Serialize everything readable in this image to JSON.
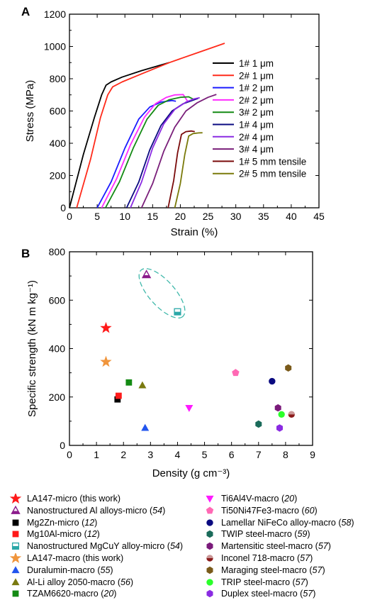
{
  "chart_data": [
    {
      "panel": "A",
      "type": "line",
      "xlabel": "Strain (%)",
      "ylabel": "Stress (MPa)",
      "xlim": [
        0,
        45
      ],
      "ylim": [
        0,
        1200
      ],
      "xticks": [
        0,
        5,
        10,
        15,
        20,
        25,
        30,
        35,
        40,
        45
      ],
      "yticks": [
        0,
        200,
        400,
        600,
        800,
        1000,
        1200
      ],
      "legend_position": "right",
      "series": [
        {
          "name": "1# 1 μm",
          "color": "#000000",
          "x": [
            0,
            2.5,
            4.5,
            5.8,
            6.6,
            7.5,
            9.5,
            13,
            18
          ],
          "y": [
            0,
            330,
            560,
            700,
            760,
            780,
            810,
            850,
            900
          ]
        },
        {
          "name": "2# 1 μm",
          "color": "#ff2a1a",
          "x": [
            1.3,
            3.8,
            5.6,
            6.9,
            7.8,
            9.5,
            13,
            18,
            23,
            28
          ],
          "y": [
            0,
            300,
            560,
            700,
            750,
            780,
            830,
            900,
            960,
            1020
          ]
        },
        {
          "name": "1# 2 μm",
          "color": "#1b1bff",
          "x": [
            5.0,
            7.5,
            10,
            12.5,
            14.5,
            16.5,
            18.5,
            19.2
          ],
          "y": [
            0,
            160,
            370,
            550,
            625,
            655,
            665,
            660
          ]
        },
        {
          "name": "2# 2 μm",
          "color": "#ff2aff",
          "x": [
            5.8,
            8.5,
            11,
            13.5,
            15.5,
            17.5,
            19,
            20.5,
            21.3
          ],
          "y": [
            0,
            180,
            390,
            560,
            645,
            685,
            700,
            702,
            660
          ]
        },
        {
          "name": "3# 2 μm",
          "color": "#138a13",
          "x": [
            6.5,
            9,
            11.5,
            14,
            16,
            18,
            20,
            21.5,
            22.5
          ],
          "y": [
            0,
            160,
            370,
            550,
            635,
            670,
            685,
            688,
            670
          ]
        },
        {
          "name": "1# 4 μm",
          "color": "#0a0a80",
          "x": [
            10.3,
            12.5,
            14.5,
            16.5,
            18.5,
            20.5,
            22.5,
            23.2
          ],
          "y": [
            0,
            160,
            360,
            510,
            600,
            645,
            670,
            678
          ]
        },
        {
          "name": "2# 4 μm",
          "color": "#8a2be2",
          "x": [
            11.0,
            13,
            15,
            17,
            19,
            21,
            22.5,
            23.5
          ],
          "y": [
            0,
            160,
            370,
            520,
            610,
            655,
            675,
            682
          ]
        },
        {
          "name": "3# 4 μm",
          "color": "#7a1f7a",
          "x": [
            13.0,
            15,
            17,
            19,
            21,
            23,
            25,
            26.5
          ],
          "y": [
            0,
            150,
            350,
            500,
            600,
            650,
            685,
            703
          ]
        },
        {
          "name": "1# 5 mm tensile",
          "color": "#7a0a0a",
          "x": [
            17.8,
            18.8,
            19.5,
            20.2,
            21,
            22,
            22.6
          ],
          "y": [
            0,
            170,
            340,
            455,
            472,
            476,
            472
          ]
        },
        {
          "name": "2# 5 mm tensile",
          "color": "#7a7a0a",
          "x": [
            19.0,
            20.0,
            20.8,
            21.5,
            22.3,
            23.3,
            24.0
          ],
          "y": [
            0,
            150,
            330,
            445,
            460,
            464,
            465
          ]
        }
      ]
    },
    {
      "panel": "B",
      "type": "scatter",
      "xlabel": "Density (g cm⁻³)",
      "ylabel": "Specific strength (kN m kg⁻¹)",
      "xlim": [
        0,
        9
      ],
      "ylim": [
        0,
        800
      ],
      "xticks": [
        0,
        1,
        2,
        3,
        4,
        5,
        6,
        7,
        8,
        9
      ],
      "yticks": [
        0,
        200,
        400,
        600,
        800
      ],
      "legend_position": "bottom",
      "series": [
        {
          "name": "LA147-micro (this work)",
          "marker": "star",
          "color": "#ff1a1a",
          "fill": true,
          "x": 1.35,
          "y": 485
        },
        {
          "name": "Nanostructured Al alloys-micro",
          "ref": "54",
          "marker": "triangle-up-half",
          "color": "#8b1a8b",
          "x": 2.85,
          "y": 705
        },
        {
          "name": "Mg2Zn-micro",
          "ref": "12",
          "marker": "square",
          "color": "#000000",
          "x": 1.78,
          "y": 190
        },
        {
          "name": "Mg10Al-micro",
          "ref": "12",
          "marker": "square",
          "color": "#ff1a1a",
          "x": 1.82,
          "y": 205
        },
        {
          "name": "Nanostructured MgCuY alloy-micro",
          "ref": "54",
          "marker": "square-half",
          "color": "#2aa8a8",
          "x": 4.0,
          "y": 552
        },
        {
          "name": "LA147-macro (this work)",
          "marker": "star",
          "color": "#f0953c",
          "fill": true,
          "x": 1.35,
          "y": 345
        },
        {
          "name": "Duralumin-macro",
          "ref": "55",
          "marker": "triangle-up",
          "color": "#2255ee",
          "x": 2.8,
          "y": 72
        },
        {
          "name": "Al-Li alloy 2050-macro",
          "ref": "56",
          "marker": "triangle-up",
          "color": "#7a7a10",
          "x": 2.7,
          "y": 248
        },
        {
          "name": "TZAM6620-macro",
          "ref": "20",
          "marker": "square",
          "color": "#138a13",
          "x": 2.2,
          "y": 260
        },
        {
          "name": "Ti6Al4V-macro",
          "ref": "20",
          "marker": "triangle-down",
          "color": "#ff1aff",
          "x": 4.43,
          "y": 155
        },
        {
          "name": "Ti50Ni47Fe3-macro",
          "ref": "60",
          "marker": "pentagon",
          "color": "#ff69b4",
          "x": 6.15,
          "y": 300
        },
        {
          "name": "Lamellar NiFeCo alloy-macro",
          "ref": "58",
          "marker": "circle",
          "color": "#0a0a80",
          "x": 7.5,
          "y": 265
        },
        {
          "name": "TWIP steel-macro",
          "ref": "59",
          "marker": "hexagon",
          "color": "#1a6b5a",
          "x": 7.0,
          "y": 88
        },
        {
          "name": "Martensitic steel-macro",
          "ref": "57",
          "marker": "hexagon",
          "color": "#7a1a7a",
          "x": 7.72,
          "y": 155
        },
        {
          "name": "Inconel 718-macro",
          "ref": "57",
          "marker": "circle-half",
          "color": "#8b1a1a",
          "x": 8.22,
          "y": 128
        },
        {
          "name": "Maraging steel-macro",
          "ref": "57",
          "marker": "hexagon",
          "color": "#7a5a1a",
          "x": 8.1,
          "y": 320
        },
        {
          "name": "TRIP steel-macro",
          "ref": "57",
          "marker": "circle",
          "color": "#2aff2a",
          "x": 7.85,
          "y": 128
        },
        {
          "name": "Duplex steel-macro",
          "ref": "57",
          "marker": "hexagon",
          "color": "#8a2be2",
          "x": 7.78,
          "y": 72
        }
      ]
    }
  ],
  "labels": {
    "panel_a": "A",
    "panel_b": "B",
    "a_ylabel": "Stress (MPa)",
    "a_xlabel": "Strain (%)",
    "b_ylabel": "Specific strength (kN m kg⁻¹)",
    "b_xlabel": "Density (g cm⁻³)"
  }
}
